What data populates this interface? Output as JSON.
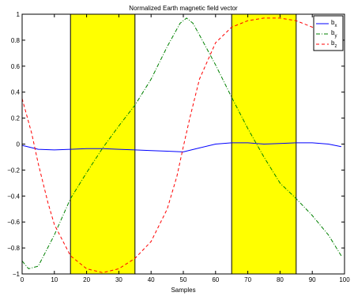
{
  "chart_data": {
    "type": "line",
    "title": "Normalized Earth magnetic field vector",
    "xlabel": "Samples",
    "ylabel": "",
    "xlim": [
      0,
      100
    ],
    "ylim": [
      -1,
      1
    ],
    "x_ticks": [
      0,
      10,
      20,
      30,
      40,
      50,
      60,
      70,
      80,
      90,
      100
    ],
    "x_tick_labels": [
      "0",
      "10",
      "20",
      "30",
      "40",
      "50",
      "60",
      "70",
      "80",
      "90",
      "100"
    ],
    "y_ticks": [
      -1,
      -0.8,
      -0.6,
      -0.4,
      -0.2,
      0,
      0.2,
      0.4,
      0.6,
      0.8,
      1
    ],
    "y_tick_labels": [
      "−1",
      "−0.8",
      "−0.6",
      "−0.4",
      "−0.2",
      "0",
      "0.2",
      "0.4",
      "0.6",
      "0.8",
      "1"
    ],
    "grid": false,
    "legend_position": "top-right",
    "highlight_regions": [
      {
        "x_start": 15,
        "x_end": 35,
        "color": "#ffff00"
      },
      {
        "x_start": 65,
        "x_end": 85,
        "color": "#ffff00"
      }
    ],
    "series": [
      {
        "name": "b",
        "subscript": "x",
        "color": "#0000ff",
        "dash": "solid",
        "x": [
          0,
          5,
          10,
          15,
          20,
          25,
          30,
          35,
          40,
          45,
          50,
          55,
          60,
          65,
          70,
          75,
          80,
          85,
          90,
          95,
          99
        ],
        "y": [
          -0.01,
          -0.04,
          -0.045,
          -0.04,
          -0.035,
          -0.035,
          -0.04,
          -0.045,
          -0.05,
          -0.055,
          -0.06,
          -0.03,
          0.0,
          0.01,
          0.01,
          0.0,
          0.005,
          0.01,
          0.01,
          0.0,
          -0.02
        ]
      },
      {
        "name": "b",
        "subscript": "y",
        "color": "#008000",
        "dash": "dashdot",
        "x": [
          0,
          2,
          5,
          10,
          15,
          20,
          25,
          30,
          35,
          40,
          45,
          49,
          51,
          53,
          55,
          60,
          65,
          70,
          75,
          80,
          85,
          90,
          95,
          99
        ],
        "y": [
          -0.9,
          -0.96,
          -0.94,
          -0.7,
          -0.42,
          -0.22,
          -0.03,
          0.14,
          0.3,
          0.5,
          0.75,
          0.93,
          0.97,
          0.93,
          0.84,
          0.61,
          0.36,
          0.12,
          -0.1,
          -0.3,
          -0.42,
          -0.55,
          -0.7,
          -0.86
        ]
      },
      {
        "name": "b",
        "subscript": "z",
        "color": "#ff0000",
        "dash": "dashed",
        "x": [
          0,
          3,
          5,
          8,
          10,
          15,
          20,
          25,
          30,
          35,
          40,
          45,
          48,
          50,
          52,
          55,
          60,
          65,
          70,
          75,
          80,
          85,
          90,
          95,
          99
        ],
        "y": [
          0.35,
          0.08,
          -0.15,
          -0.45,
          -0.62,
          -0.86,
          -0.96,
          -0.99,
          -0.96,
          -0.88,
          -0.75,
          -0.5,
          -0.25,
          -0.02,
          0.2,
          0.5,
          0.78,
          0.9,
          0.95,
          0.97,
          0.97,
          0.95,
          0.9,
          0.85,
          0.8
        ]
      }
    ]
  }
}
